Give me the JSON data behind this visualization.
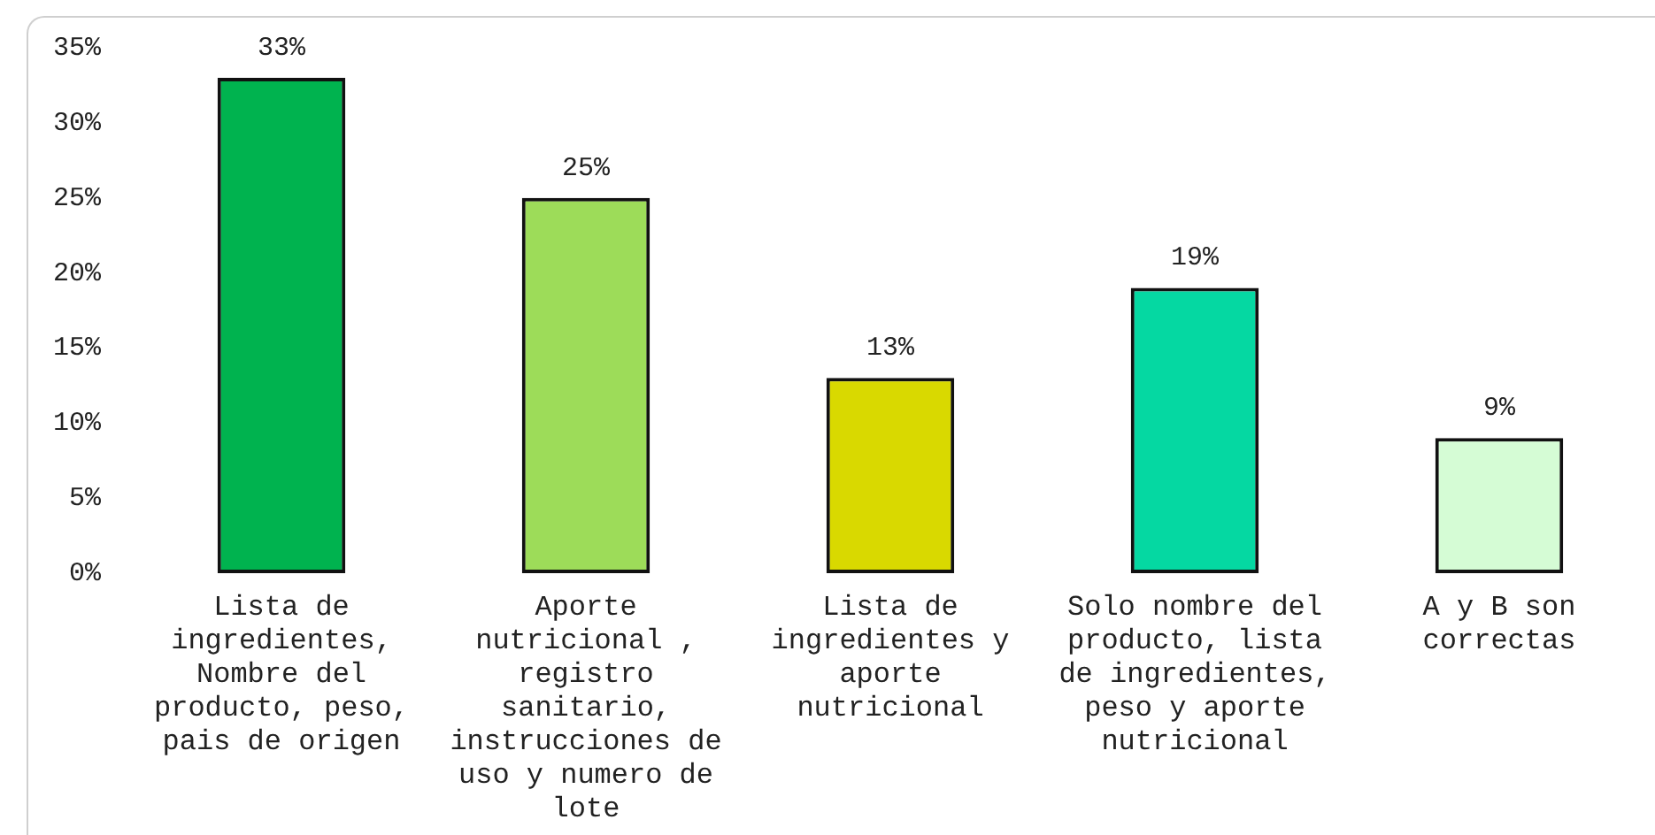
{
  "chart_data": {
    "type": "bar",
    "categories": [
      "Lista de ingredientes, Nombre del producto, peso, pais de origen",
      "Aporte nutricional , registro sanitario, instrucciones de uso y numero de lote",
      "Lista de ingredientes y aporte nutricional",
      "Solo nombre del producto, lista de ingredientes, peso y aporte nutricional",
      "A y B son correctas"
    ],
    "values": [
      33,
      25,
      13,
      19,
      9
    ],
    "colors": [
      "#00b34f",
      "#9ddc59",
      "#d9d900",
      "#05d8a2",
      "#d5fcd5"
    ],
    "value_labels": [
      "33%",
      "25%",
      "13%",
      "19%",
      "9%"
    ],
    "ylim": [
      0,
      35
    ],
    "yticks": [
      {
        "value": 0,
        "label": "0%"
      },
      {
        "value": 5,
        "label": "5%"
      },
      {
        "value": 10,
        "label": "10%"
      },
      {
        "value": 15,
        "label": "15%"
      },
      {
        "value": 20,
        "label": "20%"
      },
      {
        "value": 25,
        "label": "25%"
      },
      {
        "value": 30,
        "label": "30%"
      },
      {
        "value": 35,
        "label": "35%"
      }
    ]
  }
}
